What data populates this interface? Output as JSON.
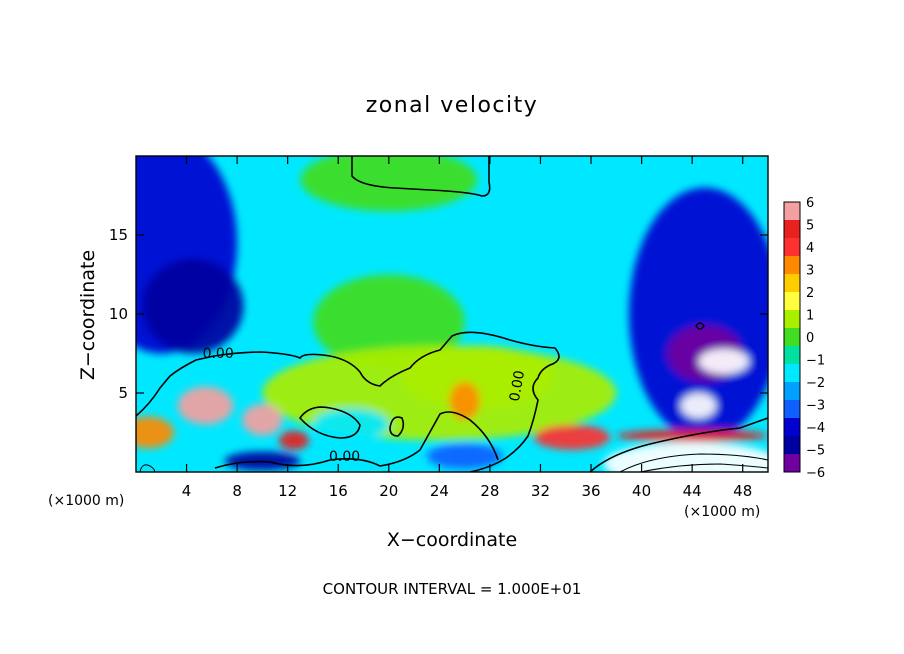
{
  "chart_data": {
    "type": "heatmap",
    "title": "zonal velocity",
    "xlabel": "X−coordinate",
    "ylabel": "Z−coordinate",
    "x_unit": "(×1000 m)",
    "x_unit_right": "(×1000 m)",
    "footer": "CONTOUR INTERVAL = 1.000E+01",
    "xlim": [
      0,
      50
    ],
    "ylim": [
      0,
      20
    ],
    "x_ticks": [
      4,
      8,
      12,
      16,
      20,
      24,
      28,
      32,
      36,
      40,
      44,
      48
    ],
    "y_ticks": [
      5,
      10,
      15
    ],
    "colorbar": {
      "ticks": [
        6,
        5,
        4,
        3,
        2,
        1,
        0,
        -1,
        -2,
        -3,
        -4,
        -5,
        -6
      ],
      "tick_labels": [
        "6",
        "5",
        "4",
        "3",
        "2",
        "1",
        "0",
        "−1",
        "−2",
        "−3",
        "−4",
        "−5",
        "−6"
      ],
      "colors": [
        "#f4a0a0",
        "#e82020",
        "#ff3030",
        "#ff8a00",
        "#ffcc00",
        "#ffff40",
        "#aaee00",
        "#40dd20",
        "#00e0a0",
        "#00e8ff",
        "#00a0ff",
        "#1060ff",
        "#0000d0",
        "#0000a0",
        "#7000a0"
      ]
    },
    "contour_labels": [
      "0.00",
      "0.00",
      "0.00"
    ],
    "contour_label_positions": [
      [
        6.5,
        7.2
      ],
      [
        16.5,
        0.7
      ],
      [
        30.5,
        5.4
      ]
    ],
    "field": {
      "base_velocity": -1.8,
      "regions": [
        {
          "xc": 2.0,
          "zc": 14.5,
          "rx": 6,
          "rz": 7,
          "v": -4.0
        },
        {
          "xc": 4.5,
          "zc": 10.5,
          "rx": 4,
          "rz": 3,
          "v": -4.6
        },
        {
          "xc": 45.0,
          "zc": 10.0,
          "rx": 6,
          "rz": 8,
          "v": -4.3
        },
        {
          "xc": 45.0,
          "zc": 7.5,
          "rx": 3,
          "rz": 1.8,
          "v": -5.8
        },
        {
          "xc": 46.5,
          "zc": 7.0,
          "rx": 2,
          "rz": 0.8,
          "v": -7
        },
        {
          "xc": 44.5,
          "zc": 4.2,
          "rx": 1.4,
          "rz": 0.8,
          "v": -7
        },
        {
          "xc": 20.0,
          "zc": 18.5,
          "rx": 7,
          "rz": 2,
          "v": 0.3
        },
        {
          "xc": 20.0,
          "zc": 9.5,
          "rx": 6,
          "rz": 3,
          "v": -0.2
        },
        {
          "xc": 24.0,
          "zc": 5.0,
          "rx": 14,
          "rz": 3,
          "v": 0.5
        },
        {
          "xc": 27.0,
          "zc": 6.0,
          "rx": 6,
          "rz": 2,
          "v": 0.8
        },
        {
          "xc": 5.5,
          "zc": 4.2,
          "rx": 2.2,
          "rz": 1.2,
          "v": 5.3
        },
        {
          "xc": 10.0,
          "zc": 3.3,
          "rx": 1.6,
          "rz": 1.0,
          "v": 5.2
        },
        {
          "xc": 12.5,
          "zc": 2.0,
          "rx": 1.2,
          "rz": 0.6,
          "v": 5.0
        },
        {
          "xc": 1.0,
          "zc": 2.5,
          "rx": 2,
          "rz": 1.0,
          "v": 3.5
        },
        {
          "xc": 26.0,
          "zc": 4.5,
          "rx": 1.2,
          "rz": 1.2,
          "v": 3.5
        },
        {
          "xc": 34.5,
          "zc": 2.2,
          "rx": 3,
          "rz": 0.8,
          "v": 3.8
        },
        {
          "xc": 17.0,
          "zc": 3.0,
          "rx": 3,
          "rz": 1.0,
          "v": -1.5
        },
        {
          "xc": 26.0,
          "zc": 1.0,
          "rx": 3,
          "rz": 0.8,
          "v": -3.5
        },
        {
          "xc": 10.0,
          "zc": 0.7,
          "rx": 3,
          "rz": 0.6,
          "v": -4.5
        },
        {
          "xc": 44.0,
          "zc": 2.3,
          "rx": 6,
          "rz": 0.4,
          "v": 5.0
        },
        {
          "xc": 44.0,
          "zc": 0.5,
          "rx": 7,
          "rz": 1.4,
          "v": 7
        }
      ]
    }
  }
}
